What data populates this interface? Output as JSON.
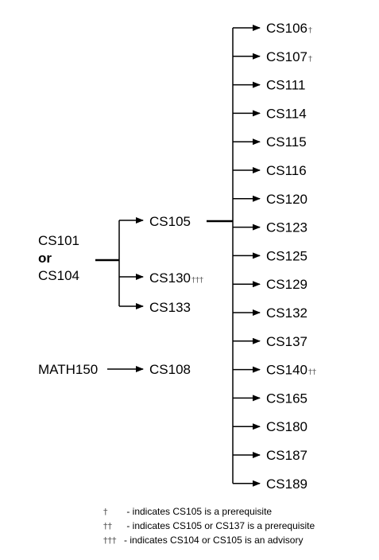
{
  "sources": {
    "cs101": "CS101",
    "or": "or",
    "cs104": "CS104",
    "math150": "MATH150"
  },
  "middle": {
    "cs105": "CS105",
    "cs130": "CS130",
    "cs130_mark": "†††",
    "cs133": "CS133",
    "cs108": "CS108"
  },
  "targets": [
    {
      "label": "CS106",
      "mark": "†"
    },
    {
      "label": "CS107",
      "mark": "†"
    },
    {
      "label": "CS111",
      "mark": ""
    },
    {
      "label": "CS114",
      "mark": ""
    },
    {
      "label": "CS115",
      "mark": ""
    },
    {
      "label": "CS116",
      "mark": ""
    },
    {
      "label": "CS120",
      "mark": ""
    },
    {
      "label": "CS123",
      "mark": ""
    },
    {
      "label": "CS125",
      "mark": ""
    },
    {
      "label": "CS129",
      "mark": ""
    },
    {
      "label": "CS132",
      "mark": ""
    },
    {
      "label": "CS137",
      "mark": ""
    },
    {
      "label": "CS140",
      "mark": "††"
    },
    {
      "label": "CS165",
      "mark": ""
    },
    {
      "label": "CS180",
      "mark": ""
    },
    {
      "label": "CS187",
      "mark": ""
    },
    {
      "label": "CS189",
      "mark": ""
    }
  ],
  "legend": [
    {
      "symbol": "†",
      "text": " - indicates CS105 is a prerequisite"
    },
    {
      "symbol": "††",
      "text": " - indicates CS105 or CS137 is a prerequisite"
    },
    {
      "symbol": "†††",
      "text": "- indicates CS104 or CS105 is an advisory"
    }
  ]
}
